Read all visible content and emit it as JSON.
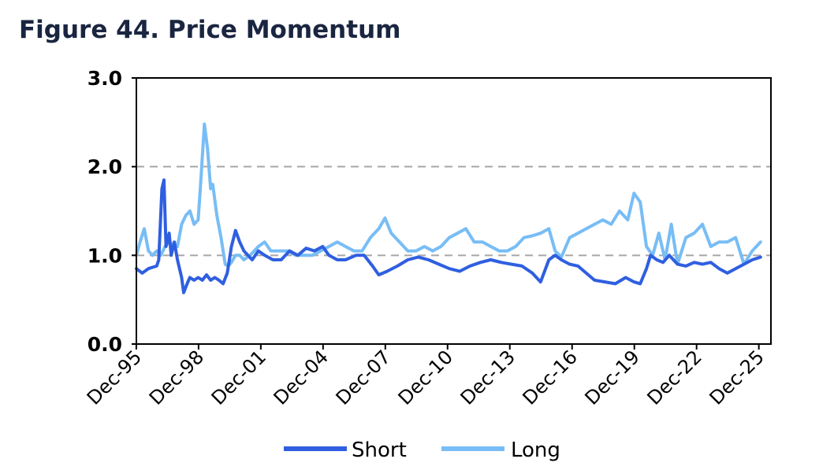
{
  "title": "Figure 44. Price Momentum",
  "colors": {
    "short": "#2f5fe0",
    "long": "#78bdf5",
    "grid": "#a6a6a6",
    "text": "#000000",
    "title": "#1a2540"
  },
  "chart_data": {
    "type": "line",
    "title": "Figure 44. Price Momentum",
    "xlabel": "",
    "ylabel": "",
    "ylim": [
      0,
      3
    ],
    "yticks": [
      "0.0",
      "1.0",
      "2.0",
      "3.0"
    ],
    "xlim": [
      1995.92,
      2026.5
    ],
    "xticks": [
      "Dec-95",
      "Dec-98",
      "Dec-01",
      "Dec-04",
      "Dec-07",
      "Dec-10",
      "Dec-13",
      "Dec-16",
      "Dec-19",
      "Dec-22",
      "Dec-25"
    ],
    "grid": "horizontal dashed",
    "legend": "bottom",
    "series": [
      {
        "name": "Short",
        "x": [
          1995.92,
          1996.2,
          1996.5,
          1996.9,
          1997.0,
          1997.15,
          1997.25,
          1997.35,
          1997.5,
          1997.6,
          1997.75,
          1997.9,
          1998.1,
          1998.2,
          1998.4,
          1998.5,
          1998.7,
          1998.9,
          1999.1,
          1999.3,
          1999.5,
          1999.7,
          1999.9,
          2000.1,
          2000.3,
          2000.5,
          2000.7,
          2000.9,
          2001.1,
          2001.3,
          2001.5,
          2001.8,
          2002.1,
          2002.5,
          2002.9,
          2003.3,
          2003.7,
          2004.1,
          2004.5,
          2004.9,
          2005.2,
          2005.6,
          2006.0,
          2006.5,
          2006.9,
          2007.3,
          2007.6,
          2008.0,
          2008.5,
          2009.0,
          2009.5,
          2010.0,
          2010.5,
          2011.0,
          2011.5,
          2012.0,
          2012.5,
          2013.0,
          2013.5,
          2014.0,
          2014.5,
          2015.0,
          2015.4,
          2015.8,
          2016.1,
          2016.4,
          2016.8,
          2017.2,
          2017.6,
          2018.0,
          2018.5,
          2019.0,
          2019.5,
          2019.9,
          2020.2,
          2020.5,
          2020.7,
          2021.0,
          2021.3,
          2021.6,
          2022.0,
          2022.4,
          2022.8,
          2023.2,
          2023.6,
          2024.0,
          2024.4,
          2024.8,
          2025.2,
          2025.6,
          2026.0
        ],
        "values": [
          0.85,
          0.8,
          0.85,
          0.88,
          0.95,
          1.75,
          1.85,
          1.1,
          1.25,
          1.0,
          1.15,
          0.95,
          0.75,
          0.58,
          0.7,
          0.75,
          0.72,
          0.75,
          0.72,
          0.78,
          0.72,
          0.75,
          0.72,
          0.68,
          0.8,
          1.1,
          1.28,
          1.15,
          1.05,
          1.0,
          0.95,
          1.05,
          1.0,
          0.95,
          0.95,
          1.05,
          1.0,
          1.08,
          1.05,
          1.1,
          1.0,
          0.95,
          0.95,
          1.0,
          1.0,
          0.88,
          0.78,
          0.82,
          0.88,
          0.95,
          0.98,
          0.95,
          0.9,
          0.85,
          0.82,
          0.88,
          0.92,
          0.95,
          0.92,
          0.9,
          0.88,
          0.8,
          0.7,
          0.95,
          1.0,
          0.95,
          0.9,
          0.88,
          0.8,
          0.72,
          0.7,
          0.68,
          0.75,
          0.7,
          0.68,
          0.85,
          1.0,
          0.95,
          0.92,
          1.0,
          0.9,
          0.88,
          0.92,
          0.9,
          0.92,
          0.85,
          0.8,
          0.85,
          0.9,
          0.95,
          0.98
        ]
      },
      {
        "name": "Long",
        "x": [
          1995.92,
          1996.1,
          1996.3,
          1996.5,
          1996.7,
          1996.9,
          1997.1,
          1997.3,
          1997.5,
          1997.7,
          1997.9,
          1998.1,
          1998.3,
          1998.5,
          1998.7,
          1998.9,
          1999.0,
          1999.2,
          1999.35,
          1999.5,
          1999.6,
          1999.8,
          2000.0,
          2000.2,
          2000.35,
          2000.5,
          2000.7,
          2000.9,
          2001.1,
          2001.4,
          2001.8,
          2002.1,
          2002.4,
          2002.8,
          2003.2,
          2003.6,
          2004.0,
          2004.4,
          2004.8,
          2005.2,
          2005.6,
          2006.0,
          2006.4,
          2006.8,
          2007.2,
          2007.6,
          2007.9,
          2008.2,
          2008.6,
          2009.0,
          2009.4,
          2009.8,
          2010.2,
          2010.6,
          2011.0,
          2011.4,
          2011.8,
          2012.2,
          2012.6,
          2013.0,
          2013.4,
          2013.8,
          2014.2,
          2014.6,
          2015.0,
          2015.4,
          2015.8,
          2016.1,
          2016.4,
          2016.8,
          2017.2,
          2017.6,
          2018.0,
          2018.4,
          2018.8,
          2019.2,
          2019.6,
          2019.9,
          2020.2,
          2020.5,
          2020.8,
          2021.1,
          2021.4,
          2021.7,
          2022.0,
          2022.4,
          2022.8,
          2023.2,
          2023.6,
          2024.0,
          2024.4,
          2024.8,
          2025.2,
          2025.6,
          2026.0
        ],
        "values": [
          1.0,
          1.15,
          1.3,
          1.05,
          1.0,
          1.05,
          1.0,
          1.1,
          1.15,
          1.12,
          1.1,
          1.35,
          1.45,
          1.5,
          1.35,
          1.4,
          1.75,
          2.48,
          2.2,
          1.75,
          1.8,
          1.45,
          1.2,
          0.9,
          0.88,
          0.92,
          1.0,
          1.0,
          0.95,
          1.0,
          1.1,
          1.15,
          1.05,
          1.05,
          1.05,
          1.0,
          1.0,
          1.0,
          1.05,
          1.1,
          1.15,
          1.1,
          1.05,
          1.05,
          1.2,
          1.3,
          1.42,
          1.25,
          1.15,
          1.05,
          1.05,
          1.1,
          1.05,
          1.1,
          1.2,
          1.25,
          1.3,
          1.15,
          1.15,
          1.1,
          1.05,
          1.05,
          1.1,
          1.2,
          1.22,
          1.25,
          1.3,
          1.05,
          0.98,
          1.2,
          1.25,
          1.3,
          1.35,
          1.4,
          1.35,
          1.5,
          1.4,
          1.7,
          1.6,
          1.1,
          1.0,
          1.25,
          0.95,
          1.35,
          0.9,
          1.2,
          1.25,
          1.35,
          1.1,
          1.15,
          1.15,
          1.2,
          0.9,
          1.05,
          1.15
        ]
      }
    ]
  }
}
